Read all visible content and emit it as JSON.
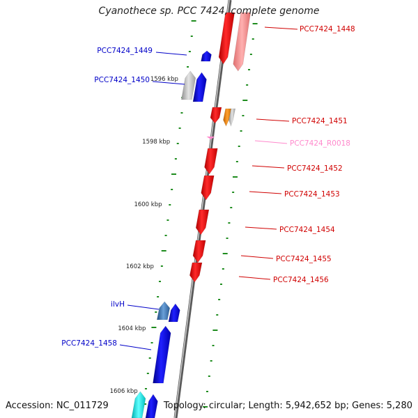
{
  "title": "Cyanothece sp. PCC 7424, complete genome",
  "footer": {
    "accession": "Accession: NC_011729",
    "stats": "Topology: circular; Length: 5,942,652 bp; Genes: 5,280"
  },
  "colors": {
    "backbone": "#8a8a8a",
    "tick": "#1e8c1e",
    "forward_gene": "#0a00ff",
    "reverse_gene": "#ff0000",
    "rna": "#ff88cc",
    "forward_label": "#0000c8",
    "reverse_label": "#d00000",
    "rna_label": "#ff88cc"
  },
  "scale_labels": [
    "1596 kbp",
    "1598 kbp",
    "1600 kbp",
    "1602 kbp",
    "1604 kbp",
    "1606 kbp"
  ],
  "forward_labels": [
    "PCC7424_1449",
    "PCC7424_1450",
    "ilvH",
    "PCC7424_1458"
  ],
  "reverse_labels": [
    "PCC7424_1448",
    "PCC7424_1451",
    "PCC7424_R0018",
    "PCC7424_1452",
    "PCC7424_1453",
    "PCC7424_1454",
    "PCC7424_1455",
    "PCC7424_1456"
  ]
}
